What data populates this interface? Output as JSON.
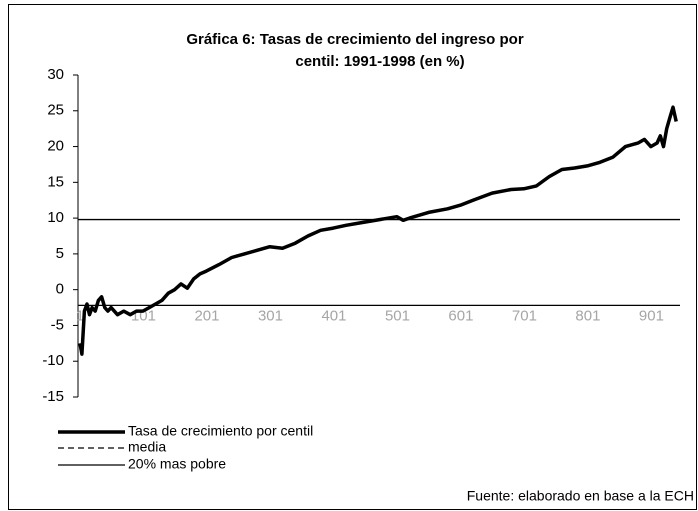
{
  "chart_data": {
    "type": "line",
    "title": [
      "Gráfica 6: Tasas de crecimiento del ingreso por",
      "centil: 1991-1998 (en %)"
    ],
    "footnote": "Fuente: elaborado en base a la ECH",
    "xlim": [
      1,
      946
    ],
    "xticks": [
      1,
      101,
      201,
      301,
      401,
      501,
      601,
      701,
      801,
      901
    ],
    "ylim": [
      -15,
      30
    ],
    "yticks": [
      -15,
      -10,
      -5,
      0,
      5,
      10,
      15,
      20,
      25,
      30
    ],
    "grid": false,
    "series": [
      {
        "name": "Tasa de crecimiento por centil",
        "color": "#000000",
        "x": [
          1,
          4,
          8,
          12,
          16,
          20,
          25,
          30,
          35,
          40,
          45,
          50,
          60,
          70,
          80,
          90,
          100,
          110,
          120,
          130,
          140,
          150,
          160,
          170,
          180,
          190,
          200,
          220,
          240,
          260,
          280,
          300,
          320,
          340,
          360,
          380,
          400,
          420,
          440,
          460,
          480,
          500,
          510,
          520,
          550,
          580,
          600,
          620,
          650,
          680,
          700,
          720,
          740,
          760,
          780,
          800,
          820,
          840,
          860,
          880,
          890,
          900,
          910,
          915,
          920,
          925,
          930,
          935,
          940
        ],
        "values": [
          -7.5,
          -9,
          -3,
          -2,
          -3.5,
          -2.5,
          -3,
          -1.5,
          -1,
          -2.5,
          -3,
          -2.5,
          -3.5,
          -3,
          -3.5,
          -3,
          -3,
          -2.5,
          -2,
          -1.5,
          -0.5,
          0,
          0.8,
          0.2,
          1.5,
          2.2,
          2.6,
          3.5,
          4.5,
          5,
          5.5,
          6,
          5.8,
          6.5,
          7.5,
          8.3,
          8.6,
          9,
          9.3,
          9.6,
          9.9,
          10.2,
          9.7,
          10,
          10.8,
          11.3,
          11.8,
          12.5,
          13.5,
          14,
          14.1,
          14.5,
          15.8,
          16.8,
          17,
          17.3,
          17.8,
          18.5,
          20,
          20.5,
          21,
          20,
          20.5,
          21.5,
          20,
          22.5,
          24,
          25.5,
          23.5
        ]
      },
      {
        "name": "media",
        "color": "#000000",
        "hline": 9.8,
        "legend_dashed": true
      },
      {
        "name": "20% mas pobre",
        "color": "#000000",
        "hline": -2.2,
        "legend_dashed": false
      }
    ]
  }
}
